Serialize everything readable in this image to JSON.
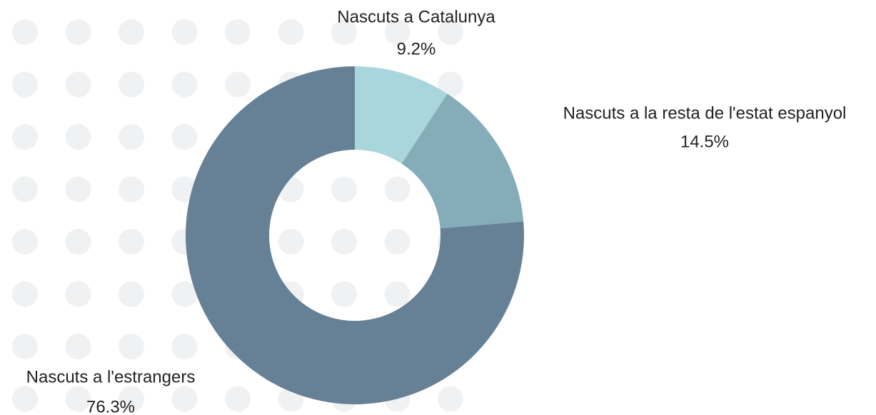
{
  "chart_data": {
    "type": "pie",
    "categories": [
      "Nascuts a Catalunya",
      "Nascuts a la resta de l'estat espanyol",
      "Nascuts a l'estrangers"
    ],
    "values": [
      9.2,
      14.5,
      76.3
    ],
    "value_labels": [
      "9.2%",
      "14.5%",
      "76.3%"
    ],
    "colors": [
      "#a8d6dc",
      "#85acb9",
      "#668095"
    ],
    "donut": true
  }
}
